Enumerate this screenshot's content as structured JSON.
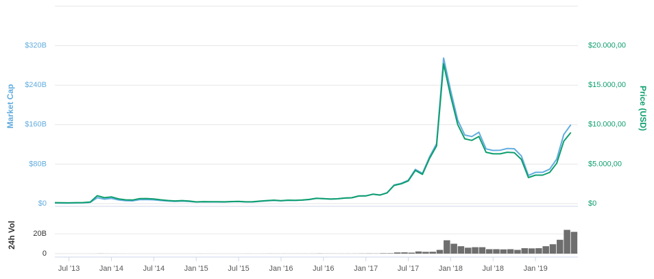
{
  "chart_data": [
    {
      "type": "line",
      "ylabel": "Market Cap",
      "y2label": "Price (USD)",
      "grid": true,
      "x": [
        "2013-05",
        "2013-06",
        "2013-07",
        "2013-08",
        "2013-09",
        "2013-10",
        "2013-11",
        "2013-12",
        "2014-01",
        "2014-02",
        "2014-03",
        "2014-04",
        "2014-05",
        "2014-06",
        "2014-07",
        "2014-08",
        "2014-09",
        "2014-10",
        "2014-11",
        "2014-12",
        "2015-01",
        "2015-02",
        "2015-03",
        "2015-04",
        "2015-05",
        "2015-06",
        "2015-07",
        "2015-08",
        "2015-09",
        "2015-10",
        "2015-11",
        "2015-12",
        "2016-01",
        "2016-02",
        "2016-03",
        "2016-04",
        "2016-05",
        "2016-06",
        "2016-07",
        "2016-08",
        "2016-09",
        "2016-10",
        "2016-11",
        "2016-12",
        "2017-01",
        "2017-02",
        "2017-03",
        "2017-04",
        "2017-05",
        "2017-06",
        "2017-07",
        "2017-08",
        "2017-09",
        "2017-10",
        "2017-11",
        "2017-12",
        "2018-01",
        "2018-02",
        "2018-03",
        "2018-04",
        "2018-05",
        "2018-06",
        "2018-07",
        "2018-08",
        "2018-09",
        "2018-10",
        "2018-11",
        "2018-12",
        "2019-01",
        "2019-02",
        "2019-03",
        "2019-04",
        "2019-05",
        "2019-06"
      ],
      "xlim": [
        "2013-05",
        "2019-07"
      ],
      "series": [
        {
          "color": "#62acdf",
          "values": [
            1.4,
            1.1,
            1.1,
            1.4,
            1.5,
            2.3,
            12.0,
            9.0,
            10.6,
            7.5,
            6.0,
            5.6,
            7.9,
            8.2,
            7.6,
            6.2,
            5.1,
            4.5,
            5.0,
            4.3,
            3.0,
            3.5,
            3.4,
            3.3,
            3.2,
            3.7,
            4.1,
            3.3,
            3.4,
            4.6,
            5.6,
            6.4,
            5.6,
            6.6,
            6.4,
            6.9,
            8.2,
            10.5,
            9.8,
            9.1,
            9.7,
            11.1,
            11.8,
            15.4,
            15.6,
            19.2,
            17.5,
            22.0,
            37.6,
            41.0,
            47.3,
            69.3,
            61.2,
            94.5,
            121.4,
            295.0,
            229.0,
            169.0,
            138.9,
            135.8,
            144.6,
            110.9,
            107.7,
            108.0,
            111.7,
            111.1,
            96.7,
            57.1,
            63.4,
            63.4,
            69.7,
            90.2,
            140.0,
            159.9
          ]
        },
        {
          "color": "#0d9e6d",
          "axis": "y2",
          "values": [
            120,
            100,
            95,
            120,
            130,
            200,
            1000,
            750,
            850,
            600,
            480,
            450,
            630,
            640,
            590,
            480,
            390,
            340,
            380,
            320,
            220,
            255,
            245,
            235,
            230,
            260,
            285,
            230,
            237,
            315,
            378,
            430,
            370,
            437,
            416,
            448,
            530,
            670,
            625,
            575,
            610,
            700,
            740,
            960,
            970,
            1190,
            1080,
            1350,
            2300,
            2500,
            2875,
            4200,
            3700,
            5700,
            7300,
            17700,
            13600,
            10000,
            8200,
            8000,
            8500,
            6500,
            6300,
            6300,
            6500,
            6450,
            5600,
            3300,
            3600,
            3600,
            3950,
            5100,
            7900,
            9000
          ]
        }
      ],
      "ylim": [
        0,
        400
      ],
      "yticks": [
        {
          "value": 0,
          "label": "$0"
        },
        {
          "value": 80,
          "label": "$80B"
        },
        {
          "value": 160,
          "label": "$160B"
        },
        {
          "value": 240,
          "label": "$240B"
        },
        {
          "value": 320,
          "label": "$320B"
        }
      ],
      "y2lim": [
        0,
        25000
      ],
      "y2ticks": [
        {
          "value": 0,
          "label": "$0"
        },
        {
          "value": 5000,
          "label": "$5.000,00"
        },
        {
          "value": 10000,
          "label": "$10.000,00"
        },
        {
          "value": 15000,
          "label": "$15.000,00"
        },
        {
          "value": 20000,
          "label": "$20.000,00"
        }
      ]
    },
    {
      "type": "bar",
      "ylabel": "24h Vol",
      "color": "#6e6e6e",
      "grid": true,
      "x": [
        "2013-05",
        "2013-06",
        "2013-07",
        "2013-08",
        "2013-09",
        "2013-10",
        "2013-11",
        "2013-12",
        "2014-01",
        "2014-02",
        "2014-03",
        "2014-04",
        "2014-05",
        "2014-06",
        "2014-07",
        "2014-08",
        "2014-09",
        "2014-10",
        "2014-11",
        "2014-12",
        "2015-01",
        "2015-02",
        "2015-03",
        "2015-04",
        "2015-05",
        "2015-06",
        "2015-07",
        "2015-08",
        "2015-09",
        "2015-10",
        "2015-11",
        "2015-12",
        "2016-01",
        "2016-02",
        "2016-03",
        "2016-04",
        "2016-05",
        "2016-06",
        "2016-07",
        "2016-08",
        "2016-09",
        "2016-10",
        "2016-11",
        "2016-12",
        "2017-01",
        "2017-02",
        "2017-03",
        "2017-04",
        "2017-05",
        "2017-06",
        "2017-07",
        "2017-08",
        "2017-09",
        "2017-10",
        "2017-11",
        "2017-12",
        "2018-01",
        "2018-02",
        "2018-03",
        "2018-04",
        "2018-05",
        "2018-06",
        "2018-07",
        "2018-08",
        "2018-09",
        "2018-10",
        "2018-11",
        "2018-12",
        "2019-01",
        "2019-02",
        "2019-03",
        "2019-04",
        "2019-05",
        "2019-06"
      ],
      "values": [
        0.02,
        0.02,
        0.01,
        0.01,
        0.01,
        0.02,
        0.1,
        0.05,
        0.04,
        0.03,
        0.02,
        0.02,
        0.02,
        0.02,
        0.02,
        0.02,
        0.02,
        0.02,
        0.02,
        0.02,
        0.04,
        0.03,
        0.03,
        0.02,
        0.02,
        0.02,
        0.03,
        0.04,
        0.03,
        0.05,
        0.09,
        0.06,
        0.07,
        0.07,
        0.07,
        0.07,
        0.08,
        0.15,
        0.1,
        0.08,
        0.08,
        0.08,
        0.1,
        0.15,
        0.2,
        0.15,
        0.4,
        0.4,
        1.2,
        1.3,
        1.0,
        2.2,
        1.8,
        1.9,
        3.8,
        13.5,
        10.0,
        7.5,
        6.0,
        6.5,
        6.5,
        4.5,
        4.5,
        4.3,
        4.5,
        3.8,
        5.5,
        5.3,
        5.5,
        7.5,
        9.5,
        14.0,
        24.0,
        22.0
      ],
      "xlim": [
        "2013-05",
        "2019-07"
      ],
      "ylim": [
        0,
        45
      ],
      "yticks": [
        0,
        {
          "value": 20,
          "label": "20B"
        }
      ],
      "xticks": [
        {
          "value": "2013-07",
          "label": "Jul '13"
        },
        {
          "value": "2014-01",
          "label": "Jan '14"
        },
        {
          "value": "2014-07",
          "label": "Jul '14"
        },
        {
          "value": "2015-01",
          "label": "Jan '15"
        },
        {
          "value": "2015-07",
          "label": "Jul '15"
        },
        {
          "value": "2016-01",
          "label": "Jan '16"
        },
        {
          "value": "2016-07",
          "label": "Jul '16"
        },
        {
          "value": "2017-01",
          "label": "Jan '17"
        },
        {
          "value": "2017-07",
          "label": "Jul '17"
        },
        {
          "value": "2018-01",
          "label": "Jan '18"
        },
        {
          "value": "2018-07",
          "label": "Jul '18"
        },
        {
          "value": "2019-01",
          "label": "Jan '19"
        }
      ]
    }
  ]
}
